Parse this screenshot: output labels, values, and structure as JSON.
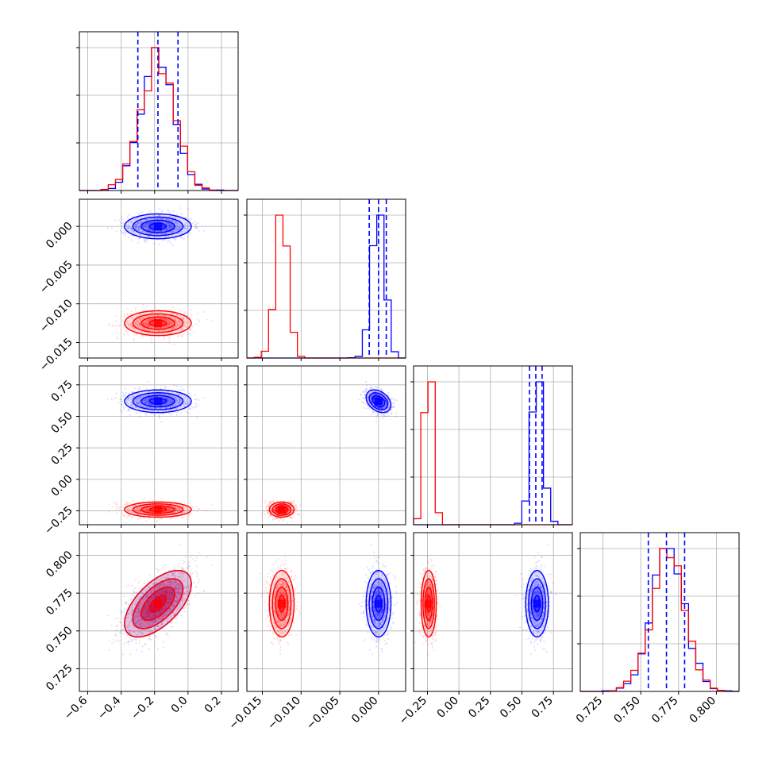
{
  "colors": {
    "series_a": "#0000ff",
    "series_b": "#ff0000",
    "grid": "#b0b0b0"
  },
  "chart_data": {
    "type": "scatter",
    "description_kind": "corner plot of 4 parameters, two posterior distributions",
    "parameters": [
      {
        "range": [
          -0.65,
          0.3
        ],
        "ticks": [
          -0.6,
          -0.4,
          -0.2,
          0.0,
          0.2
        ],
        "tick_labels": [
          "−0.6",
          "−0.4",
          "−0.2",
          "0.0",
          "0.2"
        ]
      },
      {
        "range": [
          -0.017,
          0.0035
        ],
        "ticks": [
          -0.015,
          -0.01,
          -0.005,
          0.0
        ],
        "tick_labels": [
          "−0.015",
          "−0.010",
          "−0.005",
          "0.000"
        ]
      },
      {
        "range": [
          -0.36,
          0.9
        ],
        "ticks": [
          -0.25,
          0.0,
          0.25,
          0.5,
          0.75
        ],
        "tick_labels": [
          "−0.25",
          "0.00",
          "0.25",
          "0.50",
          "0.75"
        ]
      },
      {
        "range": [
          0.71,
          0.815
        ],
        "ticks": [
          0.725,
          0.75,
          0.775,
          0.8
        ],
        "tick_labels": [
          "0.725",
          "0.750",
          "0.775",
          "0.800"
        ]
      }
    ],
    "series": [
      {
        "color": "#0000ff",
        "means": [
          -0.18,
          0.0,
          0.62,
          0.768
        ],
        "sds": [
          0.1,
          0.0008,
          0.045,
          0.011
        ],
        "quantiles": [
          [
            -0.3,
            -0.18,
            -0.06
          ],
          [
            -0.0012,
            0.0,
            0.001
          ],
          [
            0.56,
            0.61,
            0.66
          ],
          [
            0.755,
            0.767,
            0.779
          ]
        ],
        "hist_peak_fraction": [
          1.0,
          1.0,
          1.0,
          1.0
        ]
      },
      {
        "color": "#ff0000",
        "means": [
          -0.18,
          -0.0125,
          -0.24,
          0.768
        ],
        "sds": [
          0.1,
          0.0008,
          0.03,
          0.011
        ],
        "hist_peak_fraction": [
          1.0,
          1.0,
          1.0,
          1.0
        ]
      }
    ],
    "correlation_note": "parameters 1 and 4 positively correlated (rho≈0.6); parameters 2 and 3 mildly negatively correlated for blue",
    "grid": true,
    "legend": "none"
  }
}
